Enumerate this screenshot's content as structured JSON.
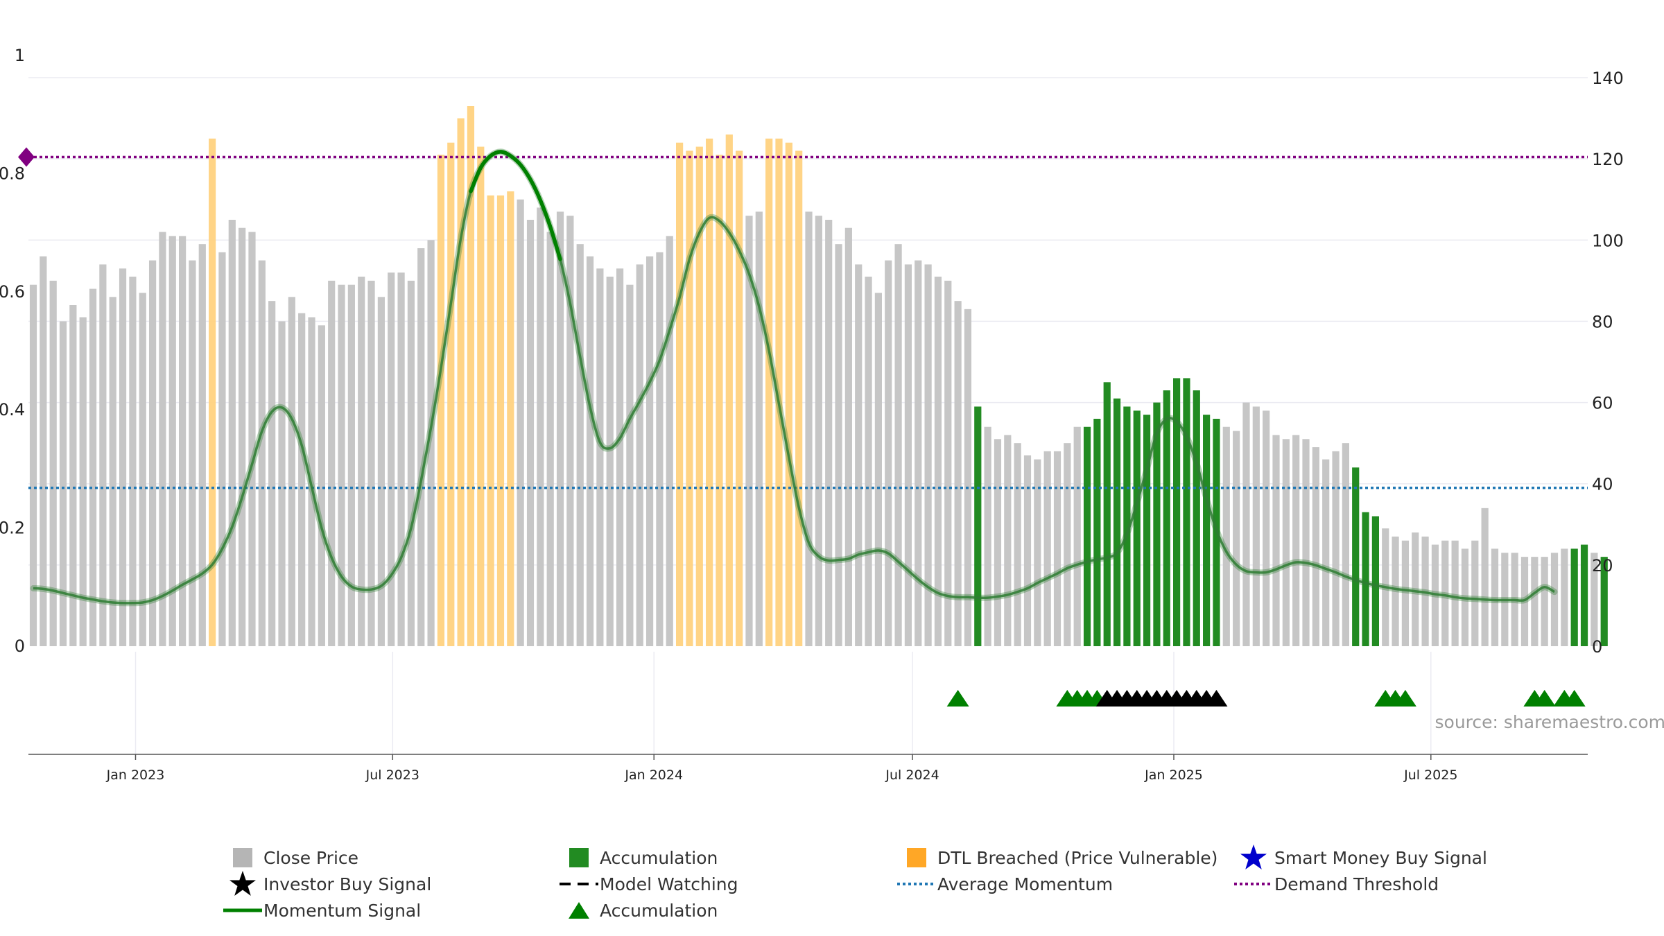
{
  "chart_data": {
    "type": "bar",
    "start_date": "2022-10-21",
    "interval_days": 7,
    "close_price": [
      89,
      96,
      90,
      80,
      84,
      81,
      88,
      94,
      86,
      93,
      91,
      87,
      95,
      102,
      101,
      101,
      95,
      99,
      125,
      97,
      105,
      103,
      102,
      95,
      85,
      80,
      86,
      82,
      81,
      79,
      90,
      89,
      89,
      91,
      90,
      86,
      92,
      92,
      90,
      98,
      100,
      121,
      124,
      130,
      133,
      123,
      111,
      111,
      112,
      110,
      105,
      108,
      102,
      107,
      106,
      99,
      96,
      93,
      91,
      93,
      89,
      94,
      96,
      97,
      101,
      124,
      122,
      123,
      125,
      121,
      126,
      122,
      106,
      107,
      125,
      125,
      124,
      122,
      107,
      106,
      105,
      99,
      103,
      94,
      91,
      87,
      95,
      99,
      94,
      95,
      94,
      91,
      90,
      85,
      83,
      59,
      54,
      51,
      52,
      50,
      47,
      46,
      48,
      48,
      50,
      54,
      54,
      56,
      65,
      61,
      59,
      58,
      57,
      60,
      63,
      66,
      66,
      63,
      57,
      56,
      54,
      53,
      60,
      59,
      58,
      52,
      51,
      52,
      51,
      49,
      46,
      48,
      50,
      44,
      33,
      32,
      29,
      27,
      26,
      28,
      27,
      25,
      26,
      26,
      24,
      26,
      34,
      24,
      23,
      23,
      22,
      22,
      22,
      23,
      24,
      24,
      25,
      23,
      22
    ],
    "category": [
      "g",
      "g",
      "g",
      "g",
      "g",
      "g",
      "g",
      "g",
      "g",
      "g",
      "g",
      "g",
      "g",
      "g",
      "g",
      "g",
      "g",
      "g",
      "o",
      "g",
      "g",
      "g",
      "g",
      "g",
      "g",
      "g",
      "g",
      "g",
      "g",
      "g",
      "g",
      "g",
      "g",
      "g",
      "g",
      "g",
      "g",
      "g",
      "g",
      "g",
      "g",
      "o",
      "o",
      "o",
      "o",
      "o",
      "o",
      "o",
      "o",
      "g",
      "g",
      "g",
      "g",
      "g",
      "g",
      "g",
      "g",
      "g",
      "g",
      "g",
      "g",
      "g",
      "g",
      "g",
      "g",
      "o",
      "o",
      "o",
      "o",
      "o",
      "o",
      "o",
      "g",
      "g",
      "o",
      "o",
      "o",
      "o",
      "g",
      "g",
      "g",
      "g",
      "g",
      "g",
      "g",
      "g",
      "g",
      "g",
      "g",
      "g",
      "g",
      "g",
      "g",
      "g",
      "g",
      "a",
      "g",
      "g",
      "g",
      "g",
      "g",
      "g",
      "g",
      "g",
      "g",
      "g",
      "a",
      "a",
      "a",
      "a",
      "a",
      "a",
      "a",
      "a",
      "a",
      "a",
      "a",
      "a",
      "a",
      "a",
      "g",
      "g",
      "g",
      "g",
      "g",
      "g",
      "g",
      "g",
      "g",
      "g",
      "g",
      "g",
      "g",
      "a",
      "a",
      "a",
      "g",
      "g",
      "g",
      "g",
      "g",
      "g",
      "g",
      "g",
      "g",
      "g",
      "g",
      "g",
      "g",
      "g",
      "g",
      "g",
      "g",
      "g",
      "g",
      "a",
      "a",
      "g",
      "a",
      "a",
      "g"
    ],
    "momentum_signal": [
      [
        0,
        0.098
      ],
      [
        1,
        0.097
      ],
      [
        2,
        0.094
      ],
      [
        3,
        0.09
      ],
      [
        4,
        0.086
      ],
      [
        5,
        0.082
      ],
      [
        6,
        0.079
      ],
      [
        7,
        0.076
      ],
      [
        8,
        0.074
      ],
      [
        9,
        0.073
      ],
      [
        10,
        0.073
      ],
      [
        11,
        0.074
      ],
      [
        12,
        0.078
      ],
      [
        13,
        0.085
      ],
      [
        14,
        0.094
      ],
      [
        15,
        0.104
      ],
      [
        16,
        0.113
      ],
      [
        17,
        0.123
      ],
      [
        18,
        0.138
      ],
      [
        19,
        0.165
      ],
      [
        20,
        0.202
      ],
      [
        21,
        0.252
      ],
      [
        22,
        0.308
      ],
      [
        23,
        0.364
      ],
      [
        24,
        0.397
      ],
      [
        25,
        0.404
      ],
      [
        26,
        0.385
      ],
      [
        27,
        0.34
      ],
      [
        28,
        0.27
      ],
      [
        29,
        0.2
      ],
      [
        30,
        0.15
      ],
      [
        31,
        0.118
      ],
      [
        32,
        0.101
      ],
      [
        33,
        0.096
      ],
      [
        34,
        0.096
      ],
      [
        35,
        0.102
      ],
      [
        36,
        0.12
      ],
      [
        37,
        0.15
      ],
      [
        38,
        0.2
      ],
      [
        39,
        0.28
      ],
      [
        40,
        0.37
      ],
      [
        41,
        0.47
      ],
      [
        42,
        0.58
      ],
      [
        43,
        0.69
      ],
      [
        44,
        0.77
      ],
      [
        45,
        0.81
      ],
      [
        46,
        0.83
      ],
      [
        47,
        0.837
      ],
      [
        48,
        0.83
      ],
      [
        49,
        0.815
      ],
      [
        50,
        0.79
      ],
      [
        51,
        0.755
      ],
      [
        52,
        0.71
      ],
      [
        53,
        0.655
      ],
      [
        54,
        0.58
      ],
      [
        55,
        0.49
      ],
      [
        56,
        0.405
      ],
      [
        57,
        0.345
      ],
      [
        58,
        0.335
      ],
      [
        59,
        0.352
      ],
      [
        60,
        0.385
      ],
      [
        61,
        0.415
      ],
      [
        62,
        0.447
      ],
      [
        63,
        0.484
      ],
      [
        64,
        0.535
      ],
      [
        65,
        0.59
      ],
      [
        66,
        0.655
      ],
      [
        67,
        0.7
      ],
      [
        68,
        0.725
      ],
      [
        69,
        0.72
      ],
      [
        70,
        0.7
      ],
      [
        71,
        0.67
      ],
      [
        72,
        0.63
      ],
      [
        73,
        0.575
      ],
      [
        74,
        0.5
      ],
      [
        75,
        0.41
      ],
      [
        76,
        0.32
      ],
      [
        77,
        0.235
      ],
      [
        78,
        0.175
      ],
      [
        79,
        0.152
      ],
      [
        80,
        0.145
      ],
      [
        81,
        0.146
      ],
      [
        82,
        0.148
      ],
      [
        83,
        0.155
      ],
      [
        84,
        0.159
      ],
      [
        85,
        0.162
      ],
      [
        86,
        0.157
      ],
      [
        87,
        0.143
      ],
      [
        88,
        0.128
      ],
      [
        89,
        0.113
      ],
      [
        90,
        0.1
      ],
      [
        91,
        0.09
      ],
      [
        92,
        0.085
      ],
      [
        93,
        0.083
      ],
      [
        94,
        0.083
      ],
      [
        95,
        0.082
      ],
      [
        96,
        0.082
      ],
      [
        97,
        0.084
      ],
      [
        98,
        0.087
      ],
      [
        99,
        0.092
      ],
      [
        100,
        0.098
      ],
      [
        101,
        0.107
      ],
      [
        102,
        0.115
      ],
      [
        103,
        0.123
      ],
      [
        104,
        0.132
      ],
      [
        105,
        0.138
      ],
      [
        106,
        0.143
      ],
      [
        107,
        0.147
      ],
      [
        108,
        0.15
      ],
      [
        109,
        0.158
      ],
      [
        110,
        0.19
      ],
      [
        111,
        0.242
      ],
      [
        112,
        0.3
      ],
      [
        113,
        0.36
      ],
      [
        114,
        0.385
      ],
      [
        115,
        0.38
      ],
      [
        116,
        0.355
      ],
      [
        117,
        0.31
      ],
      [
        118,
        0.25
      ],
      [
        119,
        0.197
      ],
      [
        120,
        0.16
      ],
      [
        121,
        0.138
      ],
      [
        122,
        0.127
      ],
      [
        123,
        0.125
      ],
      [
        124,
        0.125
      ],
      [
        125,
        0.13
      ],
      [
        126,
        0.137
      ],
      [
        127,
        0.142
      ],
      [
        128,
        0.141
      ],
      [
        129,
        0.137
      ],
      [
        130,
        0.131
      ],
      [
        131,
        0.125
      ],
      [
        132,
        0.118
      ],
      [
        133,
        0.112
      ],
      [
        134,
        0.107
      ],
      [
        135,
        0.103
      ],
      [
        136,
        0.1
      ],
      [
        137,
        0.097
      ],
      [
        138,
        0.095
      ],
      [
        139,
        0.093
      ],
      [
        140,
        0.091
      ],
      [
        141,
        0.088
      ],
      [
        142,
        0.086
      ],
      [
        143,
        0.083
      ],
      [
        144,
        0.081
      ],
      [
        145,
        0.08
      ],
      [
        146,
        0.079
      ],
      [
        147,
        0.078
      ],
      [
        148,
        0.078
      ],
      [
        149,
        0.078
      ],
      [
        150,
        0.078
      ],
      [
        151,
        0.09
      ],
      [
        152,
        0.1
      ],
      [
        153,
        0.092
      ]
    ],
    "momentum_highlight_ranges": [
      [
        44,
        53
      ]
    ],
    "accumulation_markers": [
      93,
      104,
      105,
      106,
      107,
      136,
      137,
      138,
      151,
      152,
      154,
      155
    ],
    "investor_buy_markers": [
      108,
      109,
      110,
      111,
      112,
      113,
      114,
      115,
      116,
      117,
      118,
      119
    ],
    "average_momentum": 0.268,
    "demand_threshold": 0.828,
    "y_left": {
      "min": 0,
      "max": 1,
      "ticks": [
        "0",
        "0.2",
        "0.4",
        "0.6",
        "0.8",
        "1"
      ],
      "tick_values": [
        0,
        0.2,
        0.4,
        0.6,
        0.8,
        1
      ]
    },
    "y_right": {
      "min": 0,
      "max": 140,
      "ticks": [
        "0",
        "20",
        "40",
        "60",
        "80",
        "100",
        "120",
        "140"
      ],
      "tick_values": [
        0,
        20,
        40,
        60,
        80,
        100,
        120,
        140
      ]
    },
    "x_ticks": [
      {
        "label": "Jan 2023",
        "date": "2023-01-01"
      },
      {
        "label": "Jul 2023",
        "date": "2023-07-01"
      },
      {
        "label": "Jan 2024",
        "date": "2024-01-01"
      },
      {
        "label": "Jul 2024",
        "date": "2024-07-01"
      },
      {
        "label": "Jan 2025",
        "date": "2025-01-01"
      },
      {
        "label": "Jul 2025",
        "date": "2025-07-01"
      }
    ],
    "grid": true,
    "legend_position": "bottom"
  },
  "colors": {
    "close_price": "#c6c6c6",
    "accumulation": "#228b22",
    "dtl_breached": "#ffa500",
    "momentum": "#2e7d32",
    "momentum_highlight": "#008000",
    "average_momentum": "#1f77b4",
    "demand_threshold": "#800080",
    "smart_money": "#0000cc",
    "investor": "#000000",
    "marker_green": "#008000"
  },
  "source_text": "source: sharemaestro.com",
  "legend": {
    "close_price": "Close Price",
    "accumulation": "Accumulation",
    "dtl_breached": "DTL Breached (Price Vulnerable)",
    "smart_money": "Smart Money Buy Signal",
    "investor_buy": "Investor Buy Signal",
    "model_watching": "Model Watching",
    "average_momentum": "Average Momentum",
    "demand_threshold": "Demand Threshold",
    "momentum_signal": "Momentum Signal",
    "accumulation_marker": "Accumulation"
  }
}
